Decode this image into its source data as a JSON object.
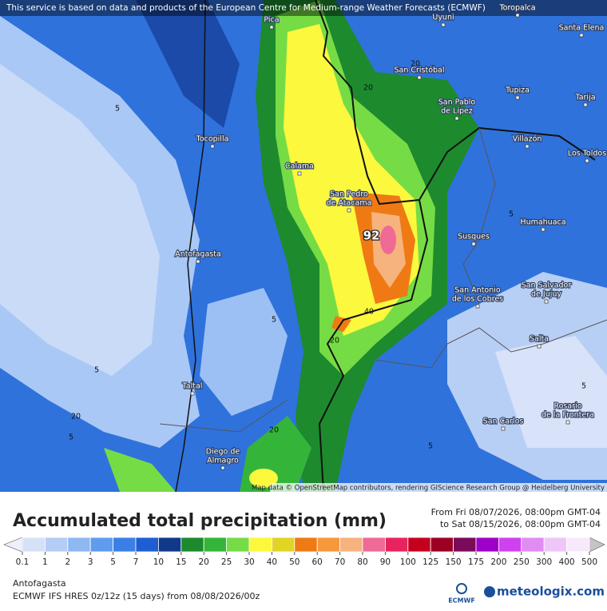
{
  "header": {
    "notice": "This service is based on data and products of the European Centre for Medium-range Weather Forecasts (ECMWF)"
  },
  "map": {
    "places": [
      {
        "lines": [
          "Pica"
        ]
      },
      {
        "lines": [
          "Uyuni"
        ]
      },
      {
        "lines": [
          "Toropalca"
        ]
      },
      {
        "lines": [
          "Santa Elena"
        ]
      },
      {
        "lines": [
          "San Cristóbal"
        ]
      },
      {
        "lines": [
          "Tupiza"
        ]
      },
      {
        "lines": [
          "Tarija"
        ]
      },
      {
        "lines": [
          "San Pablo",
          "de Lípez"
        ]
      },
      {
        "lines": [
          "Tocopilla"
        ]
      },
      {
        "lines": [
          "Villazón"
        ]
      },
      {
        "lines": [
          "Los Toldos"
        ]
      },
      {
        "lines": [
          "Calama"
        ]
      },
      {
        "lines": [
          "San Pedro",
          "de Atacama"
        ]
      },
      {
        "lines": [
          "Humahuaca"
        ]
      },
      {
        "lines": [
          "Susques"
        ]
      },
      {
        "lines": [
          "Antofagasta"
        ]
      },
      {
        "lines": [
          "San Antonio",
          "de los Cobres"
        ]
      },
      {
        "lines": [
          "San Salvador",
          "de Jujuy"
        ]
      },
      {
        "lines": [
          "Salta"
        ]
      },
      {
        "lines": [
          "Taltal"
        ]
      },
      {
        "lines": [
          "Rosario",
          "de la Frontera"
        ]
      },
      {
        "lines": [
          "San Carlos"
        ]
      },
      {
        "lines": [
          "Diego de",
          "Almagro"
        ]
      }
    ],
    "contour_labels": [
      "5",
      "20",
      "20",
      "5",
      "5",
      "40",
      "20",
      "5",
      "20",
      "5",
      "20",
      "5",
      "5"
    ],
    "max_label": "92",
    "attribution": "Map data © OpenStreetMap contributors, rendering GIScience Research Group @ Heidelberg University"
  },
  "title": "Accumulated total precipitation (mm)",
  "period": {
    "from": "From Fri 08/07/2026, 08:00pm GMT-04",
    "to": "to Sat 08/15/2026, 08:00pm GMT-04"
  },
  "colorbar": {
    "ticks": [
      0.1,
      1,
      2,
      3,
      5,
      7,
      10,
      15,
      20,
      25,
      30,
      40,
      50,
      60,
      70,
      80,
      90,
      100,
      125,
      150,
      175,
      200,
      250,
      300,
      400,
      500
    ],
    "under_color": "#eef0fb",
    "over_color": "#c4c4c4",
    "colors": [
      "#d6e1f8",
      "#b4cdf5",
      "#8db8f2",
      "#5f9cee",
      "#3a7fe6",
      "#1f5ed2",
      "#0f3a8a",
      "#1d8a2e",
      "#34b53a",
      "#76dc45",
      "#fbf83e",
      "#e2d424",
      "#ef7a14",
      "#f6993a",
      "#f7b37e",
      "#ef6a95",
      "#e8245e",
      "#c5001f",
      "#9c0022",
      "#7a0a5a",
      "#9e00c9",
      "#cf41ef",
      "#e08cf2",
      "#f0c6f8",
      "#f8e8fc"
    ]
  },
  "location": "Antofagasta",
  "model": "ECMWF IFS HRES 0z/12z (15 days) from  08/08/2026/00z",
  "logos": {
    "ecmwf": "ECMWF",
    "meteologix": "meteologix.com"
  }
}
